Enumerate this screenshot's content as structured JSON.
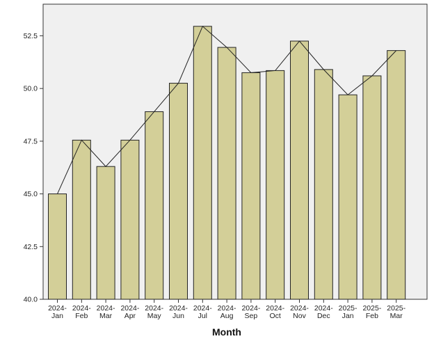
{
  "chart_data": {
    "type": "bar",
    "overlay": "line",
    "categories": [
      [
        "2024-",
        "Jan"
      ],
      [
        "2024-",
        "Feb"
      ],
      [
        "2024-",
        "Mar"
      ],
      [
        "2024-",
        "Apr"
      ],
      [
        "2024-",
        "May"
      ],
      [
        "2024-",
        "Jun"
      ],
      [
        "2024-",
        "Jul"
      ],
      [
        "2024-",
        "Aug"
      ],
      [
        "2024-",
        "Sep"
      ],
      [
        "2024-",
        "Oct"
      ],
      [
        "2024-",
        "Nov"
      ],
      [
        "2024-",
        "Dec"
      ],
      [
        "2025-",
        "Jan"
      ],
      [
        "2025-",
        "Feb"
      ],
      [
        "2025-",
        "Mar"
      ]
    ],
    "values": [
      45.0,
      47.55,
      46.3,
      47.55,
      48.9,
      50.25,
      52.95,
      51.95,
      50.75,
      50.85,
      52.25,
      50.9,
      49.7,
      50.6,
      51.8
    ],
    "xlabel": "Month",
    "ylabel": "",
    "ylim": [
      40.0,
      54.0
    ],
    "yticks": [
      "40.0",
      "42.5",
      "45.0",
      "47.5",
      "50.0",
      "52.5"
    ],
    "grid": false,
    "legend": "none",
    "colors": {
      "bar_fill": "#d3cf98",
      "bar_stroke": "#222222",
      "line": "#222222",
      "plot_background": "#f0f0f0",
      "frame": "#333333"
    }
  }
}
